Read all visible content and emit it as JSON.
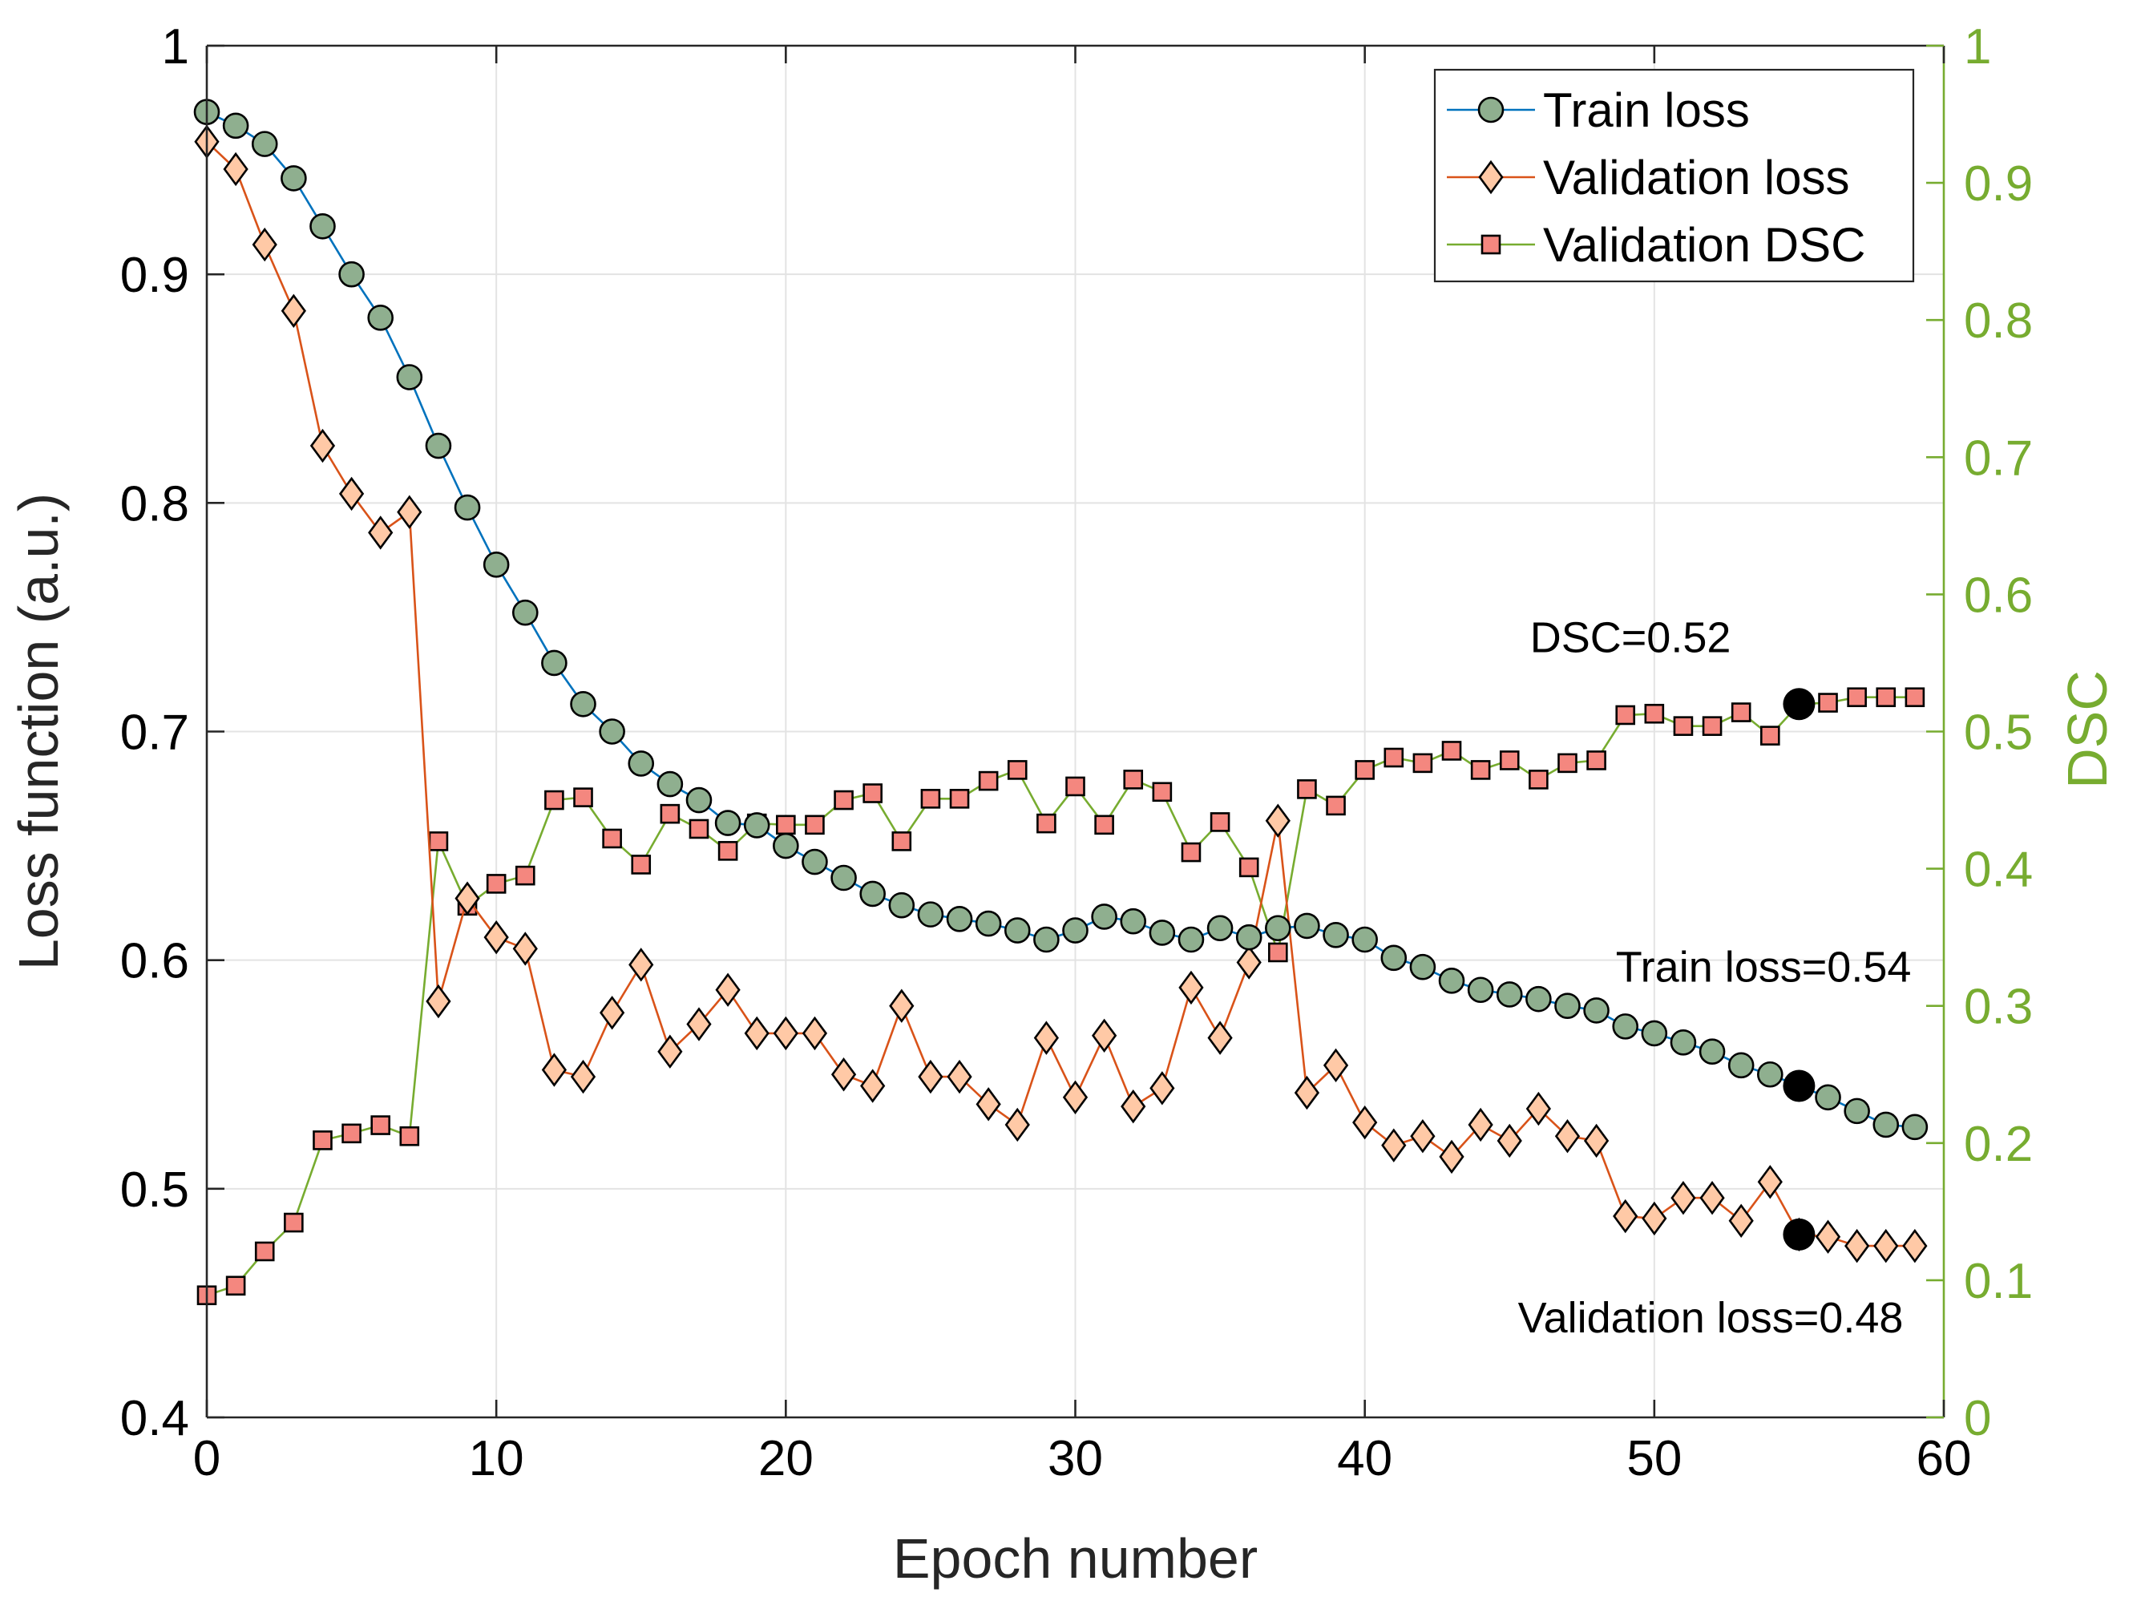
{
  "chart_data": {
    "type": "line",
    "xlabel": "Epoch number",
    "ylabel": "Loss function (a.u.)",
    "y2label": "DSC",
    "xlim": [
      0,
      60
    ],
    "ylim": [
      0.4,
      1
    ],
    "y2lim": [
      0,
      1
    ],
    "xticks": [
      0,
      10,
      20,
      30,
      40,
      50,
      60
    ],
    "xtick_labels": [
      "0",
      "10",
      "20",
      "30",
      "40",
      "50",
      "60"
    ],
    "yticks": [
      0.4,
      0.5,
      0.6,
      0.7,
      0.8,
      0.9,
      1
    ],
    "ytick_labels": [
      "0.4",
      "0.5",
      "0.6",
      "0.7",
      "0.8",
      "0.9",
      "1"
    ],
    "y2ticks": [
      0,
      0.1,
      0.2,
      0.3,
      0.4,
      0.5,
      0.6,
      0.7,
      0.8,
      0.9,
      1
    ],
    "y2tick_labels": [
      "0",
      "0.1",
      "0.2",
      "0.3",
      "0.4",
      "0.5",
      "0.6",
      "0.7",
      "0.8",
      "0.9",
      "1"
    ],
    "grid": true,
    "legend_position": "top-right",
    "colors": {
      "train_line": "#0072BD",
      "train_marker": "#8FAF8F",
      "val_line": "#D95319",
      "val_marker": "#FFC9A6",
      "dsc_line": "#77AC30",
      "dsc_marker": "#F4877F",
      "right_axis": "#77AC30"
    },
    "series": [
      {
        "name": "Train loss",
        "axis": "left",
        "marker": "circle",
        "x": [
          0,
          1,
          2,
          3,
          4,
          5,
          6,
          7,
          8,
          9,
          10,
          11,
          12,
          13,
          14,
          15,
          16,
          17,
          18,
          19,
          20,
          21,
          22,
          23,
          24,
          25,
          26,
          27,
          28,
          29,
          30,
          31,
          32,
          33,
          34,
          35,
          36,
          37,
          38,
          39,
          40,
          41,
          42,
          43,
          44,
          45,
          46,
          47,
          48,
          49,
          50,
          51,
          52,
          53,
          54,
          55,
          56,
          57,
          58,
          59
        ],
        "values": [
          0.971,
          0.965,
          0.957,
          0.942,
          0.921,
          0.9,
          0.881,
          0.855,
          0.825,
          0.798,
          0.773,
          0.752,
          0.73,
          0.712,
          0.7,
          0.686,
          0.677,
          0.67,
          0.66,
          0.659,
          0.65,
          0.643,
          0.636,
          0.629,
          0.624,
          0.62,
          0.618,
          0.616,
          0.613,
          0.609,
          0.613,
          0.619,
          0.617,
          0.612,
          0.609,
          0.614,
          0.61,
          0.614,
          0.615,
          0.611,
          0.609,
          0.601,
          0.597,
          0.591,
          0.587,
          0.585,
          0.583,
          0.58,
          0.578,
          0.571,
          0.568,
          0.564,
          0.56,
          0.554,
          0.55,
          0.545,
          0.54,
          0.534,
          0.528,
          0.527
        ]
      },
      {
        "name": "Validation loss",
        "axis": "left",
        "marker": "diamond",
        "x": [
          0,
          1,
          2,
          3,
          4,
          5,
          6,
          7,
          8,
          9,
          10,
          11,
          12,
          13,
          14,
          15,
          16,
          17,
          18,
          19,
          20,
          21,
          22,
          23,
          24,
          25,
          26,
          27,
          28,
          29,
          30,
          31,
          32,
          33,
          34,
          35,
          36,
          37,
          38,
          39,
          40,
          41,
          42,
          43,
          44,
          45,
          46,
          47,
          48,
          49,
          50,
          51,
          52,
          53,
          54,
          55,
          56,
          57,
          58,
          59
        ],
        "values": [
          0.958,
          0.946,
          0.913,
          0.884,
          0.825,
          0.804,
          0.787,
          0.796,
          0.582,
          0.627,
          0.61,
          0.605,
          0.552,
          0.549,
          0.577,
          0.598,
          0.56,
          0.572,
          0.587,
          0.568,
          0.568,
          0.568,
          0.55,
          0.545,
          0.58,
          0.549,
          0.549,
          0.537,
          0.528,
          0.566,
          0.54,
          0.567,
          0.536,
          0.544,
          0.588,
          0.566,
          0.599,
          0.661,
          0.542,
          0.554,
          0.529,
          0.519,
          0.523,
          0.514,
          0.528,
          0.521,
          0.535,
          0.523,
          0.521,
          0.488,
          0.487,
          0.496,
          0.496,
          0.486,
          0.503,
          0.48,
          0.479,
          0.475,
          0.475,
          0.475
        ]
      },
      {
        "name": "Validation DSC",
        "axis": "right",
        "marker": "square",
        "x": [
          0,
          1,
          2,
          3,
          4,
          5,
          6,
          7,
          8,
          9,
          10,
          11,
          12,
          13,
          14,
          15,
          16,
          17,
          18,
          19,
          20,
          21,
          22,
          23,
          24,
          25,
          26,
          27,
          28,
          29,
          30,
          31,
          32,
          33,
          34,
          35,
          36,
          37,
          38,
          39,
          40,
          41,
          42,
          43,
          44,
          45,
          46,
          47,
          48,
          49,
          50,
          51,
          52,
          53,
          54,
          55,
          56,
          57,
          58,
          59
        ],
        "values": [
          0.089,
          0.096,
          0.121,
          0.142,
          0.202,
          0.207,
          0.213,
          0.205,
          0.42,
          0.373,
          0.389,
          0.395,
          0.45,
          0.452,
          0.422,
          0.403,
          0.44,
          0.429,
          0.413,
          0.433,
          0.432,
          0.432,
          0.45,
          0.455,
          0.42,
          0.451,
          0.451,
          0.464,
          0.472,
          0.433,
          0.46,
          0.432,
          0.465,
          0.456,
          0.412,
          0.434,
          0.401,
          0.339,
          0.458,
          0.446,
          0.472,
          0.481,
          0.477,
          0.486,
          0.472,
          0.479,
          0.465,
          0.477,
          0.479,
          0.512,
          0.513,
          0.504,
          0.504,
          0.514,
          0.497,
          0.52,
          0.521,
          0.525,
          0.525,
          0.525
        ]
      }
    ],
    "highlight_epoch": 55,
    "annotations": [
      {
        "text": "DSC=0.52",
        "series": "Validation DSC"
      },
      {
        "text": "Train loss=0.54",
        "series": "Train loss"
      },
      {
        "text": "Validation loss=0.48",
        "series": "Validation loss"
      }
    ]
  }
}
